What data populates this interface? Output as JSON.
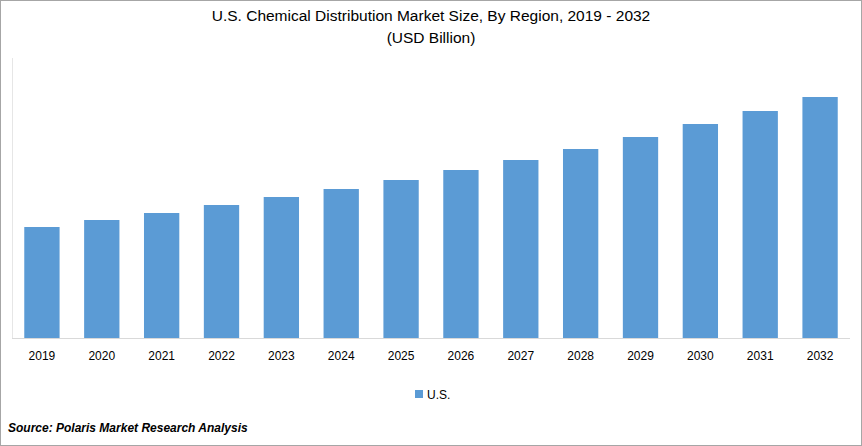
{
  "chart_data": {
    "type": "bar",
    "title": "U.S. Chemical Distribution Market  Size, By Region, 2019 - 2032",
    "subtitle": "(USD Billion)",
    "categories": [
      "2019",
      "2020",
      "2021",
      "2022",
      "2023",
      "2024",
      "2025",
      "2026",
      "2027",
      "2028",
      "2029",
      "2030",
      "2031",
      "2032"
    ],
    "series": [
      {
        "name": "U.S.",
        "color": "#5b9bd5",
        "values": [
          55.5,
          59,
          62.5,
          66.5,
          70.5,
          74.5,
          79,
          84,
          89,
          94.5,
          100.5,
          107,
          113.5,
          120.5
        ]
      }
    ],
    "ylim": [
      0,
      140
    ],
    "tick_labels": "x",
    "grid": false,
    "legend": "bottom",
    "source": "Source: Polaris Market Research Analysis"
  }
}
